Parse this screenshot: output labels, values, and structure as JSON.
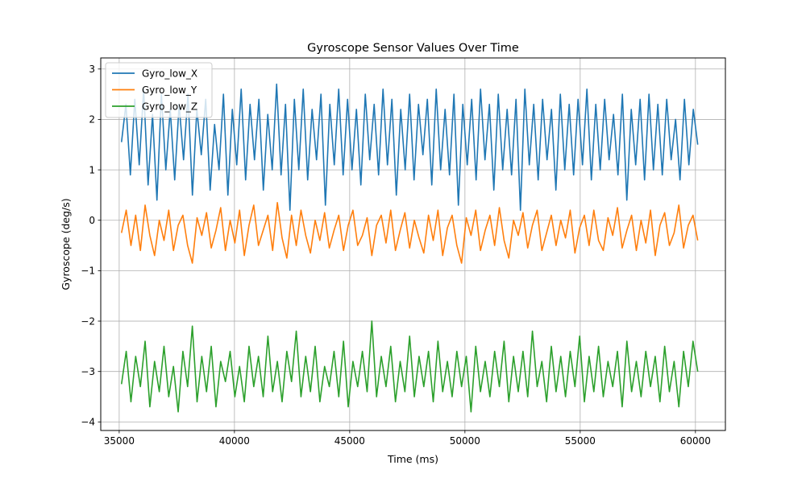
{
  "chart_data": {
    "type": "line",
    "title": "Gyroscope Sensor Values Over Time",
    "xlabel": "Time (ms)",
    "ylabel": "Gyroscope (deg/s)",
    "xlim": [
      34200,
      61300
    ],
    "ylim": [
      -4.17,
      3.22
    ],
    "xticks": [
      35000,
      40000,
      45000,
      50000,
      55000,
      60000
    ],
    "xtick_labels": [
      "35000",
      "40000",
      "45000",
      "50000",
      "55000",
      "60000"
    ],
    "yticks": [
      3,
      2,
      1,
      0,
      -1,
      -2,
      -3,
      -4
    ],
    "ytick_labels": [
      "3",
      "2",
      "1",
      "0",
      "−1",
      "−2",
      "−3",
      "−4"
    ],
    "grid": true,
    "legend_position": "top-left",
    "series": [
      {
        "name": "Gyro_low_X",
        "color": "#1f77b4",
        "x_start": 35100,
        "x_end": 60100,
        "values": [
          1.55,
          2.3,
          0.9,
          2.4,
          1.1,
          2.6,
          0.7,
          2.1,
          0.4,
          2.5,
          1.0,
          2.2,
          0.8,
          2.3,
          1.2,
          2.5,
          0.5,
          2.2,
          1.3,
          2.4,
          0.6,
          1.9,
          1.0,
          2.5,
          0.5,
          2.2,
          1.1,
          2.6,
          0.8,
          2.3,
          1.2,
          2.4,
          0.6,
          2.1,
          1.0,
          2.7,
          0.9,
          2.3,
          0.2,
          2.4,
          1.0,
          2.6,
          0.8,
          2.2,
          1.2,
          2.5,
          0.3,
          2.3,
          1.1,
          2.6,
          0.9,
          2.4,
          1.0,
          2.2,
          0.7,
          2.5,
          1.2,
          2.3,
          0.9,
          2.6,
          1.1,
          2.4,
          0.5,
          2.2,
          1.0,
          2.5,
          0.8,
          2.3,
          1.3,
          2.4,
          0.7,
          2.6,
          1.0,
          2.2,
          0.9,
          2.5,
          0.3,
          2.3,
          1.1,
          2.4,
          0.8,
          2.6,
          1.2,
          2.3,
          0.6,
          2.5,
          1.0,
          2.2,
          0.9,
          2.4,
          0.2,
          2.6,
          1.1,
          2.3,
          0.8,
          2.4,
          1.2,
          2.2,
          0.6,
          2.5,
          1.0,
          2.3,
          0.9,
          2.4,
          1.1,
          2.6,
          0.8,
          2.3,
          1.0,
          2.4,
          1.2,
          2.1,
          0.9,
          2.5,
          0.4,
          2.2,
          1.1,
          2.4,
          0.8,
          2.5,
          1.0,
          2.3,
          0.9,
          2.4,
          1.2,
          2.0,
          0.8,
          2.4,
          1.1,
          2.2,
          1.5
        ]
      },
      {
        "name": "Gyro_low_Y",
        "color": "#ff7f0e",
        "x_start": 35100,
        "x_end": 60100,
        "values": [
          -0.25,
          0.2,
          -0.5,
          0.1,
          -0.6,
          0.3,
          -0.3,
          -0.7,
          0.0,
          -0.4,
          0.2,
          -0.6,
          -0.1,
          0.1,
          -0.5,
          -0.85,
          0.05,
          -0.3,
          0.15,
          -0.55,
          -0.2,
          0.25,
          -0.6,
          0.0,
          -0.45,
          0.2,
          -0.7,
          -0.1,
          0.3,
          -0.5,
          -0.2,
          0.1,
          -0.6,
          0.35,
          -0.35,
          -0.75,
          0.1,
          -0.5,
          0.2,
          -0.3,
          -0.65,
          0.0,
          -0.4,
          0.15,
          -0.55,
          -0.2,
          0.1,
          -0.6,
          -0.1,
          0.2,
          -0.5,
          -0.3,
          0.05,
          -0.7,
          -0.1,
          0.1,
          -0.45,
          0.2,
          -0.6,
          -0.2,
          0.15,
          -0.55,
          0.0,
          -0.35,
          -0.65,
          0.1,
          -0.4,
          0.2,
          -0.7,
          -0.15,
          0.1,
          -0.5,
          -0.85,
          0.05,
          -0.3,
          0.2,
          -0.6,
          -0.2,
          0.1,
          -0.5,
          0.25,
          -0.4,
          -0.75,
          0.0,
          -0.3,
          0.15,
          -0.55,
          -0.1,
          0.2,
          -0.6,
          -0.25,
          0.1,
          -0.5,
          0.0,
          -0.35,
          0.2,
          -0.65,
          -0.15,
          0.1,
          -0.5,
          0.2,
          -0.4,
          -0.6,
          0.05,
          -0.3,
          0.25,
          -0.55,
          -0.2,
          0.1,
          -0.6,
          0.0,
          -0.45,
          0.2,
          -0.7,
          -0.1,
          0.15,
          -0.5,
          -0.25,
          0.3,
          -0.55,
          -0.1,
          0.1,
          -0.4
        ]
      },
      {
        "name": "Gyro_low_Z",
        "color": "#2ca02c",
        "x_start": 35100,
        "x_end": 60100,
        "values": [
          -3.25,
          -2.6,
          -3.6,
          -2.7,
          -3.3,
          -2.4,
          -3.7,
          -2.8,
          -3.4,
          -2.5,
          -3.5,
          -2.9,
          -3.8,
          -2.6,
          -3.3,
          -2.1,
          -3.6,
          -2.7,
          -3.4,
          -2.5,
          -3.7,
          -2.8,
          -3.2,
          -2.6,
          -3.5,
          -2.9,
          -3.6,
          -2.5,
          -3.3,
          -2.7,
          -3.5,
          -2.3,
          -3.4,
          -2.8,
          -3.6,
          -2.6,
          -3.2,
          -2.2,
          -3.5,
          -2.7,
          -3.4,
          -2.5,
          -3.6,
          -2.9,
          -3.3,
          -2.6,
          -3.5,
          -2.4,
          -3.7,
          -2.8,
          -3.3,
          -2.6,
          -3.4,
          -2.0,
          -3.5,
          -2.7,
          -3.3,
          -2.5,
          -3.6,
          -2.8,
          -3.4,
          -2.3,
          -3.5,
          -2.7,
          -3.3,
          -2.6,
          -3.6,
          -2.4,
          -3.4,
          -2.8,
          -3.5,
          -2.6,
          -3.3,
          -2.7,
          -3.8,
          -2.5,
          -3.4,
          -2.8,
          -3.5,
          -2.6,
          -3.3,
          -2.4,
          -3.6,
          -2.7,
          -3.4,
          -2.6,
          -3.5,
          -2.2,
          -3.3,
          -2.8,
          -3.6,
          -2.5,
          -3.4,
          -2.7,
          -3.5,
          -2.6,
          -3.3,
          -2.3,
          -3.6,
          -2.7,
          -3.4,
          -2.5,
          -3.5,
          -2.8,
          -3.3,
          -2.6,
          -3.7,
          -2.4,
          -3.4,
          -2.8,
          -3.5,
          -2.6,
          -3.3,
          -2.7,
          -3.6,
          -2.5,
          -3.4,
          -2.8,
          -3.7,
          -2.6,
          -3.3,
          -2.4,
          -3.0
        ]
      }
    ]
  }
}
